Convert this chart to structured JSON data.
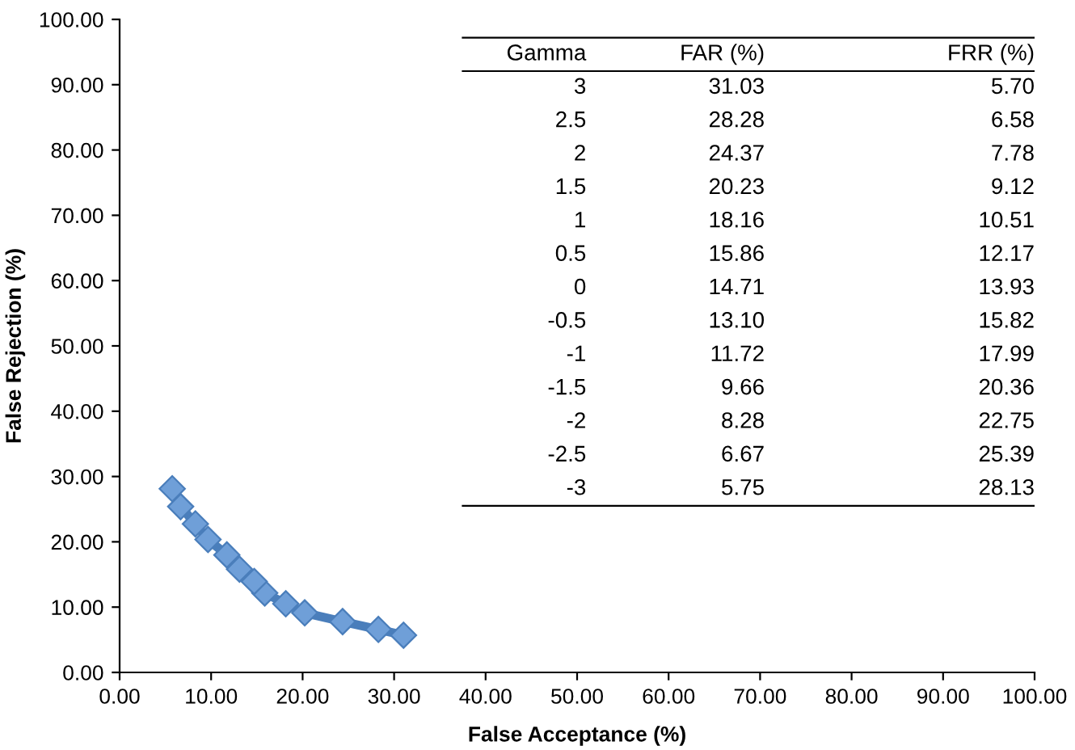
{
  "chart_data": {
    "type": "line",
    "xlabel": "False Acceptance (%)",
    "ylabel": "False Rejection (%)",
    "annotations": [
      "Gamma",
      "FAR (%)",
      "FRR (%)",
      "3",
      "31.03",
      "5.70",
      "2.5",
      "28.28",
      "6.58",
      "2",
      "24.37",
      "7.78",
      "1.5",
      "20.23",
      "9.12",
      "1",
      "18.16",
      "10.51",
      "0.5",
      "15.86",
      "12.17",
      "0",
      "14.71",
      "13.93",
      "-0.5",
      "13.10",
      "15.82",
      "-1",
      "11.72",
      "17.99",
      "-1.5",
      "9.66",
      "20.36",
      "-2",
      "8.28",
      "22.75",
      "-2.5",
      "6.67",
      "25.39",
      "-3",
      "5.75",
      "28.13"
    ],
    "x": [
      31.03,
      28.28,
      24.37,
      20.23,
      18.16,
      15.86,
      14.71,
      13.1,
      11.72,
      9.66,
      8.28,
      6.67,
      5.75
    ],
    "values": [
      5.7,
      6.58,
      7.78,
      9.12,
      10.51,
      12.17,
      13.93,
      15.82,
      17.99,
      20.36,
      22.75,
      25.39,
      28.13
    ],
    "color": "#4a7ebb",
    "marker": "diamond",
    "line_style": "solid",
    "grid": false,
    "legend": false,
    "xlim": [
      0,
      100
    ],
    "ylim": [
      0,
      100
    ],
    "xticks": [
      {
        "value": 0,
        "label": "0.00"
      },
      {
        "value": 10,
        "label": "10.00"
      },
      {
        "value": 20,
        "label": "20.00"
      },
      {
        "value": 30,
        "label": "30.00"
      },
      {
        "value": 40,
        "label": "40.00"
      },
      {
        "value": 50,
        "label": "50.00"
      },
      {
        "value": 60,
        "label": "60.00"
      },
      {
        "value": 70,
        "label": "70.00"
      },
      {
        "value": 80,
        "label": "80.00"
      },
      {
        "value": 90,
        "label": "90.00"
      },
      {
        "value": 100,
        "label": "100.00"
      }
    ],
    "yticks": [
      {
        "value": 0,
        "label": "0.00"
      },
      {
        "value": 10,
        "label": "10.00"
      },
      {
        "value": 20,
        "label": "20.00"
      },
      {
        "value": 30,
        "label": "30.00"
      },
      {
        "value": 40,
        "label": "40.00"
      },
      {
        "value": 50,
        "label": "50.00"
      },
      {
        "value": 60,
        "label": "60.00"
      },
      {
        "value": 70,
        "label": "70.00"
      },
      {
        "value": 80,
        "label": "80.00"
      },
      {
        "value": 90,
        "label": "90.00"
      },
      {
        "value": 100,
        "label": "100.00"
      }
    ]
  }
}
